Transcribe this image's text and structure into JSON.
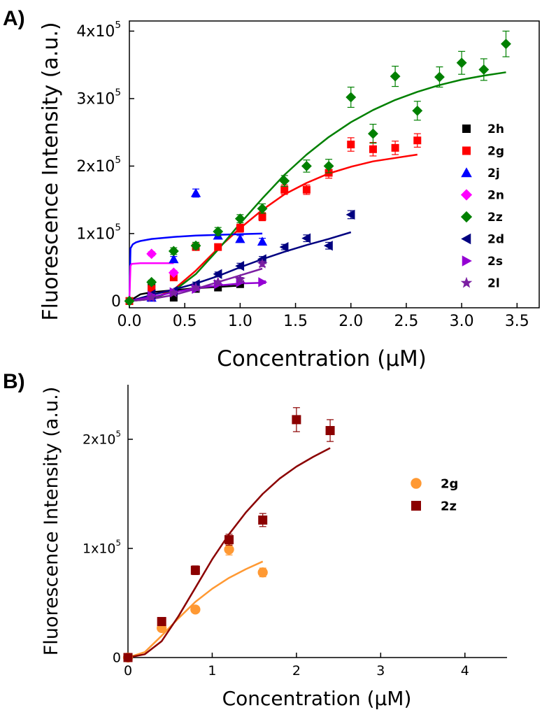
{
  "chart_data": [
    {
      "panel_label": "A)",
      "type": "scatter",
      "xlabel": "Concentration (μM)",
      "ylabel": "Fluorescence Intensity (a.u.)",
      "xlim": [
        0,
        3.7
      ],
      "ylim": [
        -10000,
        415000
      ],
      "xticks": [
        0.0,
        0.5,
        1.0,
        1.5,
        2.0,
        2.5,
        3.0,
        3.5
      ],
      "xtick_labels": [
        "0.0",
        "0.5",
        "1.0",
        "1.5",
        "2.0",
        "2.5",
        "3.0",
        "3.5"
      ],
      "yticks": [
        0,
        100000,
        200000,
        300000,
        400000
      ],
      "ytick_labels": [
        {
          "base": "0",
          "exp": ""
        },
        {
          "base": "1x10",
          "exp": "5"
        },
        {
          "base": "2x10",
          "exp": "5"
        },
        {
          "base": "3x10",
          "exp": "5"
        },
        {
          "base": "4x10",
          "exp": "5"
        }
      ],
      "grid": false,
      "legend_position": "right",
      "series": [
        {
          "name": "2h",
          "color": "#000000",
          "marker": "square",
          "x": [
            0.0,
            0.2,
            0.4,
            0.6,
            0.8,
            1.0
          ],
          "y": [
            0,
            20000,
            5000,
            18000,
            20000,
            25000
          ],
          "err": [
            2000,
            4000,
            3000,
            2000,
            2000,
            2000
          ],
          "fit_x": [
            0.0,
            0.1,
            0.2,
            0.4,
            0.6,
            0.8,
            1.0
          ],
          "fit_y": [
            0,
            10000,
            13000,
            16000,
            19000,
            21000,
            23000
          ]
        },
        {
          "name": "2g",
          "color": "#ff0000",
          "marker": "square",
          "x": [
            0.0,
            0.2,
            0.4,
            0.6,
            0.8,
            1.0,
            1.2,
            1.4,
            1.6,
            1.8,
            2.0,
            2.2,
            2.4,
            2.6
          ],
          "y": [
            0,
            18000,
            35000,
            80000,
            80000,
            108000,
            125000,
            165000,
            165000,
            190000,
            232000,
            225000,
            227000,
            238000
          ],
          "err": [
            2000,
            3000,
            4000,
            4000,
            4000,
            6000,
            6000,
            7000,
            7000,
            8000,
            10000,
            10000,
            10000,
            10000
          ],
          "fit_x": [
            0.0,
            0.2,
            0.4,
            0.6,
            0.8,
            1.0,
            1.2,
            1.4,
            1.6,
            1.8,
            2.0,
            2.2,
            2.4,
            2.6
          ],
          "fit_y": [
            0,
            3000,
            17000,
            45000,
            78000,
            108000,
            135000,
            158000,
            175000,
            189000,
            199000,
            207000,
            212000,
            217000
          ]
        },
        {
          "name": "2j",
          "color": "#0000ff",
          "marker": "triangle-up",
          "x": [
            0.2,
            0.4,
            0.6,
            0.8,
            1.0,
            1.2
          ],
          "y": [
            5000,
            62000,
            160000,
            97000,
            92000,
            88000
          ],
          "err": [
            3000,
            4000,
            6000,
            4000,
            5000,
            5000
          ],
          "fit_x": [
            0.0,
            0.01,
            0.03,
            0.06,
            0.1,
            0.2,
            0.4,
            0.6,
            0.8,
            1.0,
            1.2
          ],
          "fit_y": [
            0,
            78000,
            84000,
            87000,
            89000,
            92000,
            95000,
            97000,
            98000,
            99000,
            100000
          ]
        },
        {
          "name": "2n",
          "color": "#ff00ff",
          "marker": "diamond",
          "x": [
            0.2,
            0.4
          ],
          "y": [
            70000,
            42000
          ],
          "err": [
            3000,
            3000
          ],
          "fit_x": [
            0.0,
            0.01,
            0.02,
            0.1,
            0.2,
            0.4
          ],
          "fit_y": [
            0,
            52000,
            55000,
            56000,
            56000,
            56000
          ]
        },
        {
          "name": "2z",
          "color": "#008000",
          "marker": "diamond",
          "x": [
            0.0,
            0.2,
            0.4,
            0.6,
            0.8,
            1.0,
            1.2,
            1.4,
            1.6,
            1.8,
            2.0,
            2.2,
            2.4,
            2.6,
            2.8,
            3.0,
            3.2,
            3.4
          ],
          "y": [
            0,
            28000,
            74000,
            82000,
            103000,
            122000,
            137000,
            178000,
            200000,
            200000,
            302000,
            248000,
            333000,
            282000,
            332000,
            353000,
            343000,
            381000
          ],
          "err": [
            2000,
            3000,
            5000,
            5000,
            6000,
            6000,
            7000,
            8000,
            9000,
            10000,
            15000,
            14000,
            15000,
            14000,
            15000,
            17000,
            16000,
            19000
          ],
          "fit_x": [
            0.0,
            0.2,
            0.4,
            0.6,
            0.8,
            1.0,
            1.2,
            1.4,
            1.6,
            1.8,
            2.0,
            2.2,
            2.4,
            2.6,
            2.8,
            3.0,
            3.2,
            3.4
          ],
          "fit_y": [
            0,
            3000,
            15000,
            40000,
            76000,
            115000,
            152000,
            187000,
            217000,
            243000,
            265000,
            283000,
            298000,
            310000,
            320000,
            328000,
            334000,
            339000
          ]
        },
        {
          "name": "2d",
          "color": "#000080",
          "marker": "triangle-left",
          "x": [
            0.2,
            0.4,
            0.6,
            0.8,
            1.0,
            1.2,
            1.4,
            1.6,
            1.8,
            2.0
          ],
          "y": [
            10000,
            15000,
            25000,
            40000,
            52000,
            62000,
            80000,
            93000,
            82000,
            128000
          ],
          "err": [
            2000,
            2000,
            3000,
            3000,
            4000,
            4000,
            4000,
            5000,
            5000,
            6000
          ],
          "fit_x": [
            0.0,
            0.2,
            0.4,
            0.6,
            0.8,
            1.0,
            1.2,
            1.4,
            1.6,
            1.8,
            2.0
          ],
          "fit_y": [
            0,
            9000,
            17000,
            26000,
            37000,
            50000,
            62000,
            73000,
            83000,
            92000,
            102000
          ]
        },
        {
          "name": "2s",
          "color": "#9400d3",
          "marker": "triangle-right",
          "x": [
            0.2,
            0.4,
            0.6,
            0.8,
            1.0,
            1.2
          ],
          "y": [
            8000,
            13000,
            18000,
            25000,
            28000,
            28000
          ],
          "err": [
            2000,
            2000,
            2000,
            2000,
            2000,
            2000
          ],
          "fit_x": [
            0.0,
            0.2,
            0.4,
            0.6,
            0.8,
            1.0,
            1.2
          ],
          "fit_y": [
            0,
            6000,
            13000,
            19000,
            23000,
            26000,
            27000
          ]
        },
        {
          "name": "2l",
          "color": "#7b1fa2",
          "marker": "star",
          "x": [
            0.2,
            0.4,
            0.6,
            0.8,
            1.0,
            1.2
          ],
          "y": [
            5000,
            12000,
            20000,
            28000,
            32000,
            55000
          ],
          "err": [
            2000,
            2000,
            2000,
            2000,
            3000,
            4000
          ],
          "fit_x": [
            0.0,
            0.2,
            0.4,
            0.6,
            0.8,
            1.0,
            1.2
          ],
          "fit_y": [
            0,
            3000,
            9000,
            18000,
            28000,
            38000,
            48000
          ]
        }
      ]
    },
    {
      "panel_label": "B)",
      "type": "scatter",
      "xlabel": "Concentration (μM)",
      "ylabel": "Fluorescence Intensity (a.u.)",
      "xlim": [
        0,
        4.5
      ],
      "ylim": [
        0,
        250000
      ],
      "xticks": [
        0,
        1,
        2,
        3,
        4
      ],
      "xtick_labels": [
        "0",
        "1",
        "2",
        "3",
        "4"
      ],
      "yticks": [
        0,
        100000,
        200000
      ],
      "ytick_labels": [
        {
          "base": "0",
          "exp": ""
        },
        {
          "base": "1x10",
          "exp": "5"
        },
        {
          "base": "2x10",
          "exp": "5"
        }
      ],
      "grid": false,
      "legend_position": "right",
      "series": [
        {
          "name": "2g",
          "color": "#ff9933",
          "marker": "circle",
          "x": [
            0.0,
            0.4,
            0.8,
            1.2,
            1.6
          ],
          "y": [
            0,
            27000,
            44000,
            99000,
            78000
          ],
          "err": [
            1000,
            3000,
            3000,
            5000,
            4000
          ],
          "fit_x": [
            0.0,
            0.2,
            0.4,
            0.6,
            0.8,
            1.0,
            1.2,
            1.4,
            1.6
          ],
          "fit_y": [
            0,
            5000,
            20000,
            36000,
            51000,
            63000,
            73000,
            81000,
            88000
          ]
        },
        {
          "name": "2z",
          "color": "#8b0000",
          "marker": "square",
          "x": [
            0.0,
            0.4,
            0.8,
            1.2,
            1.6,
            2.0,
            2.4
          ],
          "y": [
            0,
            33000,
            80000,
            108000,
            126000,
            218000,
            208000
          ],
          "err": [
            1000,
            3000,
            4000,
            5000,
            6000,
            11000,
            10000
          ],
          "fit_x": [
            0.0,
            0.2,
            0.4,
            0.6,
            0.8,
            1.0,
            1.2,
            1.4,
            1.6,
            1.8,
            2.0,
            2.2,
            2.4
          ],
          "fit_y": [
            0,
            3000,
            15000,
            38000,
            64000,
            90000,
            113000,
            133000,
            150000,
            164000,
            175000,
            184000,
            192000
          ]
        }
      ]
    }
  ]
}
